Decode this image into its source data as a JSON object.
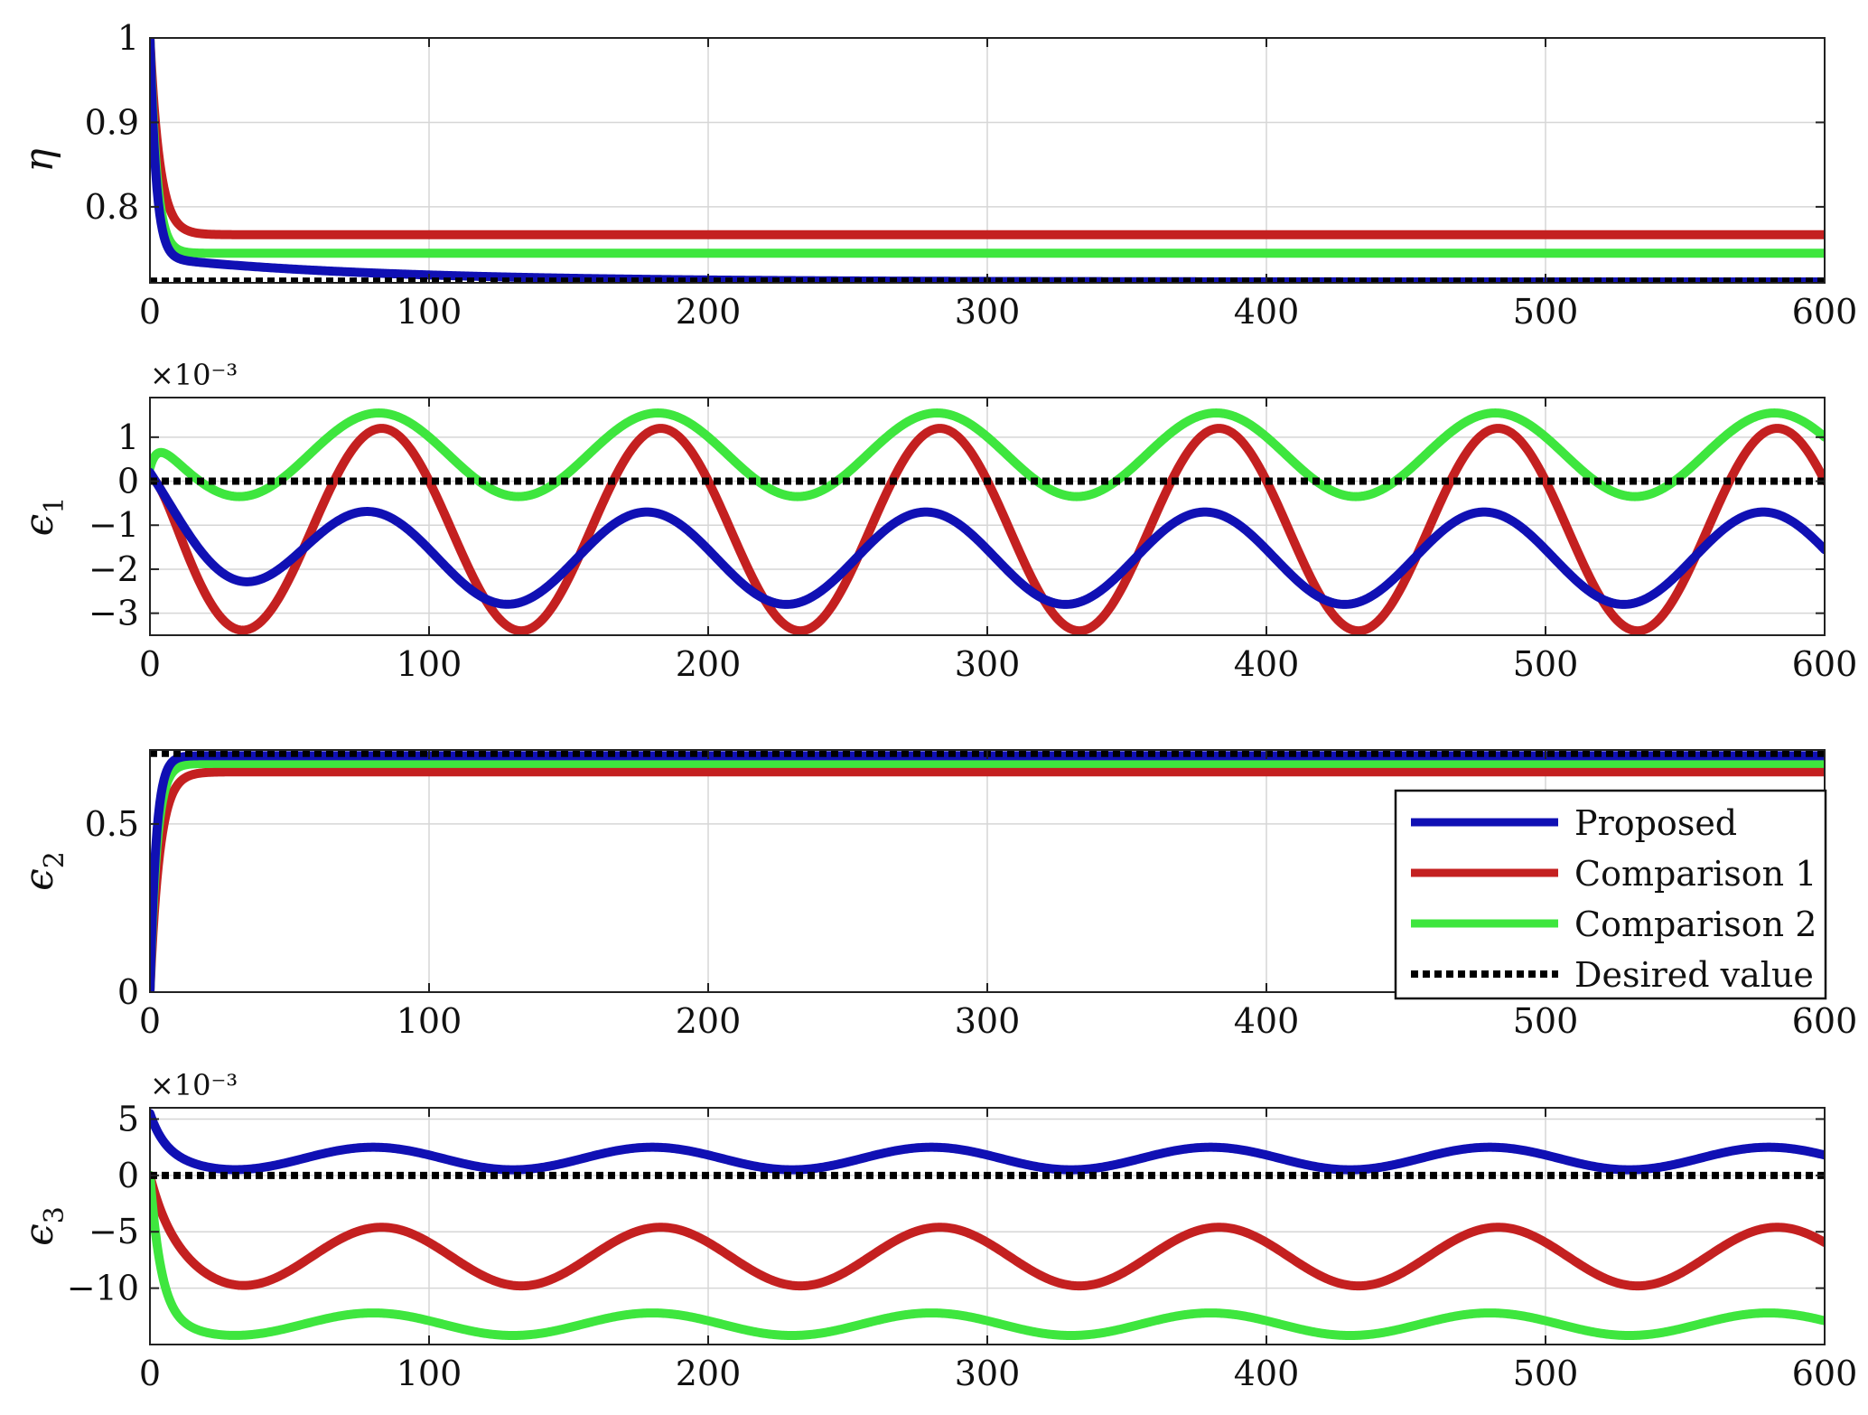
{
  "colors": {
    "proposed": "#1010b4",
    "comparison1": "#c42020",
    "comparison2": "#3ee63e",
    "desired": "#000000",
    "grid": "#d6d6d6",
    "axis": "#222222"
  },
  "legend": {
    "placement": "lower-right of third panel",
    "items": [
      {
        "key": "proposed",
        "label": "Proposed",
        "style": "solid"
      },
      {
        "key": "comparison1",
        "label": "Comparison 1",
        "style": "solid"
      },
      {
        "key": "comparison2",
        "label": "Comparison 2",
        "style": "solid"
      },
      {
        "key": "desired",
        "label": "Desired value",
        "style": "dotted"
      }
    ]
  },
  "chart_data": [
    {
      "type": "line",
      "ylabel": "η",
      "ylabel_sub": "",
      "multiplier": "",
      "xlim": [
        0,
        600
      ],
      "ylim": [
        0.71,
        1.0
      ],
      "xticks": [
        0,
        100,
        200,
        300,
        400,
        500,
        600
      ],
      "yticks": [
        {
          "v": 0.8,
          "t": "0.8"
        },
        {
          "v": 0.9,
          "t": "0.9"
        },
        {
          "v": 1.0,
          "t": "1"
        }
      ],
      "grid": true,
      "series": [
        {
          "key": "comparison1",
          "model": {
            "kind": "decay",
            "start": 1.0,
            "final": 0.767,
            "tau": 3.5
          }
        },
        {
          "key": "comparison2",
          "model": {
            "kind": "decay",
            "start": 1.0,
            "final": 0.745,
            "tau": 2.5
          }
        },
        {
          "key": "proposed",
          "model": {
            "kind": "decay2",
            "start": 1.0,
            "mid": 0.74,
            "tau": 2.2,
            "final": 0.711,
            "tau2": 80
          }
        },
        {
          "key": "desired",
          "model": {
            "kind": "const",
            "value": 0.712
          }
        }
      ]
    },
    {
      "type": "line",
      "ylabel": "ϵ",
      "ylabel_sub": "1",
      "multiplier": "×10⁻³",
      "xlim": [
        0,
        600
      ],
      "ylim": [
        -3.5,
        1.9
      ],
      "xticks": [
        0,
        100,
        200,
        300,
        400,
        500,
        600
      ],
      "yticks": [
        {
          "v": -3,
          "t": "−3"
        },
        {
          "v": -2,
          "t": "−2"
        },
        {
          "v": -1,
          "t": "−1"
        },
        {
          "v": 0,
          "t": "0"
        },
        {
          "v": 1,
          "t": "1"
        }
      ],
      "grid": true,
      "series": [
        {
          "key": "comparison1",
          "model": {
            "kind": "sine",
            "mean": -1.1,
            "amp": 2.3,
            "peak_x": 83,
            "period": 100,
            "start": 0.1,
            "tau": 6
          }
        },
        {
          "key": "comparison2",
          "model": {
            "kind": "sine",
            "mean": 0.6,
            "amp": 0.95,
            "peak_x": 82,
            "period": 100,
            "start": 0.3,
            "tau": 3
          }
        },
        {
          "key": "proposed",
          "model": {
            "kind": "sine",
            "mean": -1.75,
            "amp": 1.05,
            "peak_x": 78,
            "period": 100,
            "start": 0.2,
            "tau": 18
          }
        },
        {
          "key": "desired",
          "model": {
            "kind": "const",
            "value": 0
          }
        }
      ]
    },
    {
      "type": "line",
      "ylabel": "ϵ",
      "ylabel_sub": "2",
      "multiplier": "",
      "xlim": [
        0,
        600
      ],
      "ylim": [
        0,
        0.72
      ],
      "xticks": [
        0,
        100,
        200,
        300,
        400,
        500,
        600
      ],
      "yticks": [
        {
          "v": 0,
          "t": "0"
        },
        {
          "v": 0.5,
          "t": "0.5"
        }
      ],
      "grid": true,
      "series": [
        {
          "key": "comparison1",
          "model": {
            "kind": "rise",
            "start": 0.0,
            "final": 0.655,
            "tau": 3.5
          }
        },
        {
          "key": "comparison2",
          "model": {
            "kind": "rise",
            "start": 0.0,
            "final": 0.68,
            "tau": 2.5
          }
        },
        {
          "key": "proposed",
          "model": {
            "kind": "rise",
            "start": 0.0,
            "final": 0.703,
            "tau": 2.2
          }
        },
        {
          "key": "desired",
          "model": {
            "kind": "const",
            "value": 0.71
          }
        }
      ]
    },
    {
      "type": "line",
      "ylabel": "ϵ",
      "ylabel_sub": "3",
      "multiplier": "×10⁻³",
      "xlim": [
        0,
        600
      ],
      "ylim": [
        -15,
        6
      ],
      "xticks": [
        0,
        100,
        200,
        300,
        400,
        500,
        600
      ],
      "yticks": [
        {
          "v": -10,
          "t": "−10"
        },
        {
          "v": -5,
          "t": "−5"
        },
        {
          "v": 0,
          "t": "0"
        },
        {
          "v": 5,
          "t": "5"
        }
      ],
      "grid": true,
      "series": [
        {
          "key": "comparison1",
          "model": {
            "kind": "sine",
            "mean": -7.2,
            "amp": 2.6,
            "peak_x": 83,
            "period": 100,
            "start": 0.0,
            "tau": 6
          }
        },
        {
          "key": "comparison2",
          "model": {
            "kind": "sine",
            "mean": -13.2,
            "amp": 1.0,
            "peak_x": 80,
            "period": 100,
            "start": 0.0,
            "tau": 4
          }
        },
        {
          "key": "proposed",
          "model": {
            "kind": "sine",
            "mean": 1.5,
            "amp": 1.0,
            "peak_x": 80,
            "period": 100,
            "start": 5.5,
            "tau": 5
          }
        },
        {
          "key": "desired",
          "model": {
            "kind": "const",
            "value": 0
          }
        }
      ]
    }
  ]
}
